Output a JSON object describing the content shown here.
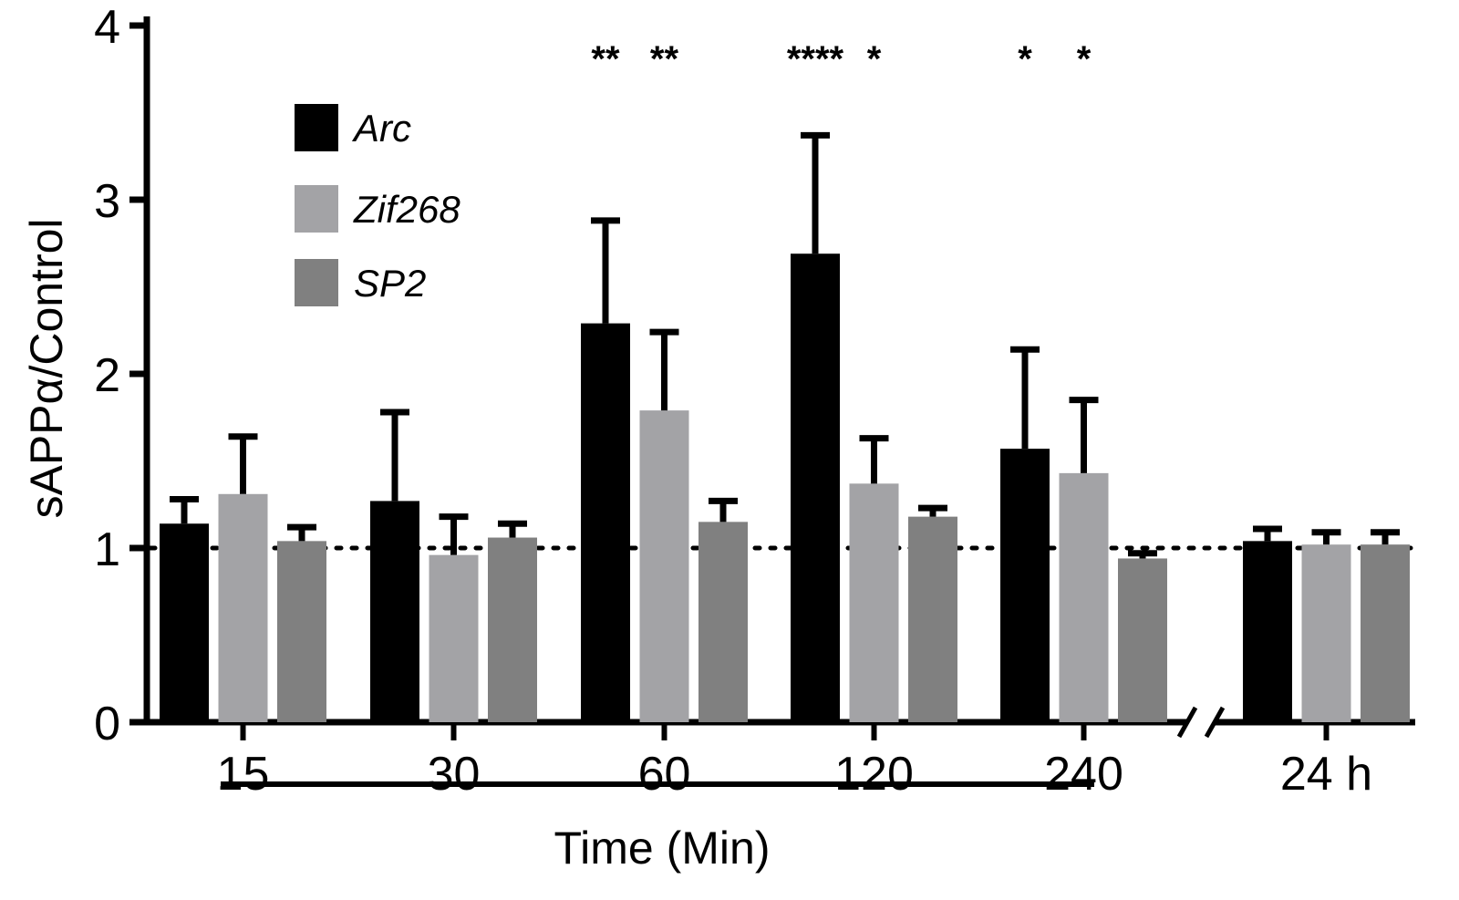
{
  "chart_data": {
    "type": "bar",
    "ylabel": "sAPPα/Control",
    "xlabel": "Time (Min)",
    "ylim": [
      0,
      4
    ],
    "yticks": [
      "0",
      "1",
      "2",
      "3",
      "4"
    ],
    "baseline": 1,
    "categories": [
      "15",
      "30",
      "60",
      "120",
      "240",
      "24 h"
    ],
    "series": [
      {
        "name": "Arc",
        "color": "#000000",
        "values": [
          1.14,
          1.27,
          2.29,
          2.69,
          1.57,
          1.04
        ],
        "errors": [
          0.14,
          0.51,
          0.59,
          0.68,
          0.57,
          0.07
        ]
      },
      {
        "name": "Zif268",
        "color": "#a3a3a6",
        "values": [
          1.31,
          0.96,
          1.79,
          1.37,
          1.43,
          1.02
        ],
        "errors": [
          0.33,
          0.22,
          0.45,
          0.26,
          0.42,
          0.07
        ]
      },
      {
        "name": "SP2",
        "color": "#808080",
        "values": [
          1.04,
          1.06,
          1.15,
          1.18,
          0.94,
          1.02
        ],
        "errors": [
          0.08,
          0.08,
          0.12,
          0.05,
          0.03,
          0.07
        ]
      }
    ],
    "significance": [
      {
        "text": "**",
        "category": "60",
        "series": "Arc"
      },
      {
        "text": "**",
        "category": "60",
        "series": "Zif268"
      },
      {
        "text": "****",
        "category": "120",
        "series": "Arc"
      },
      {
        "text": "*",
        "category": "120",
        "series": "Zif268"
      },
      {
        "text": "*",
        "category": "240",
        "series": "Arc"
      },
      {
        "text": "*",
        "category": "240",
        "series": "Zif268"
      }
    ]
  }
}
